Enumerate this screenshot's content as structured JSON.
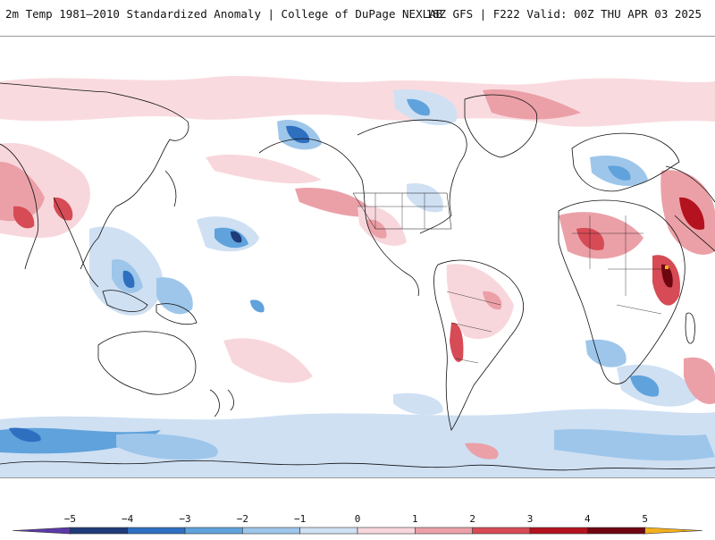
{
  "title_left": "2m Temp 1981–2010 Standardized Anomaly | College of DuPage NEXLAB",
  "title_right": "18Z GFS | F222 Valid: 00Z THU APR 03 2025",
  "colorbar": {
    "ticks": [
      "−5",
      "−4",
      "−3",
      "−2",
      "−1",
      "0",
      "1",
      "2",
      "3",
      "4",
      "5"
    ],
    "min": -6,
    "max": 6,
    "colors": {
      "neg6": "#5b3aa6",
      "neg5": "#1f3a78",
      "neg4": "#2e6fc0",
      "neg3": "#5fa2dc",
      "neg2": "#9ec6ea",
      "neg1": "#cfe0f3",
      "zero": "#ffffff",
      "pos1": "#f8d7dc",
      "pos2": "#eba0a7",
      "pos3": "#d64b55",
      "pos4": "#b3121e",
      "pos5": "#6e0610",
      "pos6": "#f2b01e"
    }
  }
}
